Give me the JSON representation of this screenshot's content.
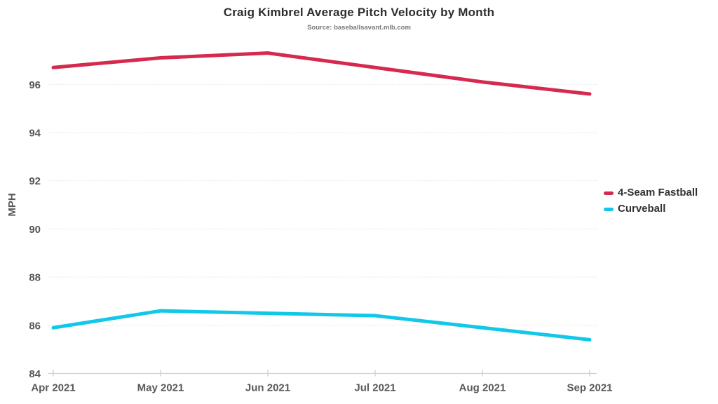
{
  "header": {
    "title": "Craig Kimbrel Average Pitch Velocity by Month",
    "subtitle": "Source: baseballsavant.mlb.com"
  },
  "chart_data": {
    "type": "line",
    "title": "Craig Kimbrel Average Pitch Velocity by Month",
    "subtitle": "Source: baseballsavant.mlb.com",
    "source": "baseballsavant.mlb.com",
    "xlabel": "",
    "ylabel": "MPH",
    "categories": [
      "Apr 2021",
      "May 2021",
      "Jun 2021",
      "Jul 2021",
      "Aug 2021",
      "Sep 2021"
    ],
    "series": [
      {
        "name": "4-Seam Fastball",
        "color": "#d6294e",
        "values": [
          96.7,
          97.1,
          97.3,
          96.7,
          96.1,
          95.6
        ]
      },
      {
        "name": "Curveball",
        "color": "#12c8e8",
        "values": [
          85.9,
          86.6,
          86.5,
          86.4,
          85.9,
          85.4
        ]
      }
    ],
    "yticks": [
      84,
      86,
      88,
      90,
      92,
      94,
      96
    ],
    "ylim": [
      84,
      97.9
    ],
    "grid": true,
    "legend_position": "right",
    "styles": {
      "grid_color": "#e2e3e5",
      "axis_color": "#cfd1d4",
      "tick_mark_color": "#c9d6df",
      "tick_label_color": "#58595b",
      "line_width": 5
    }
  }
}
